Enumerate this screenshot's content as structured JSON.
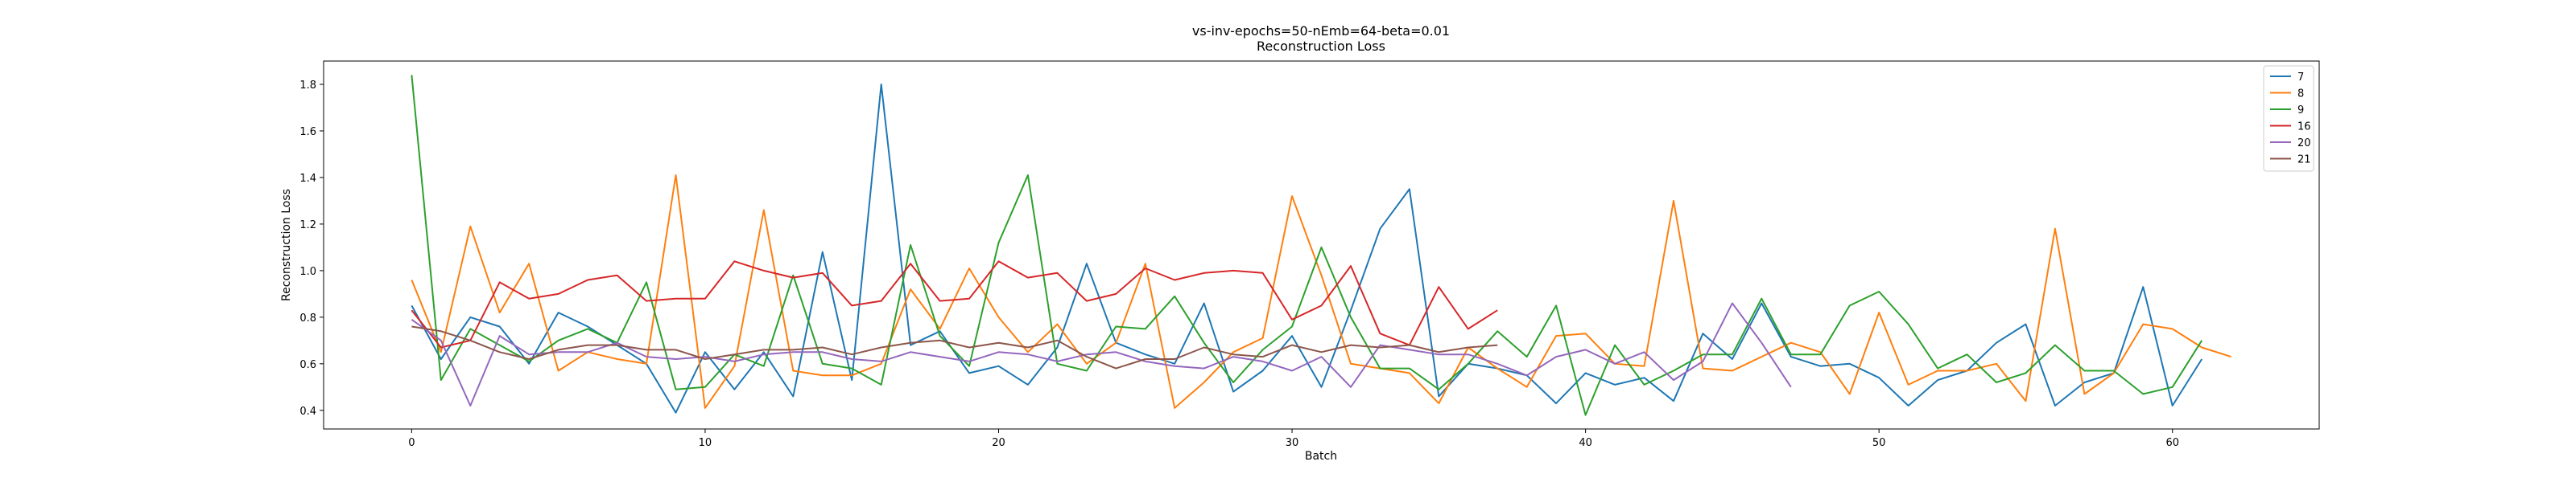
{
  "chart_data": {
    "type": "line",
    "title": "vs-inv-epochs=50-nEmb=64-beta=0.01",
    "subtitle": "Reconstruction Loss",
    "xlabel": "Batch",
    "ylabel": "Reconstruction Loss",
    "xlim": [
      -3,
      65
    ],
    "ylim": [
      0.32,
      1.9
    ],
    "xticks": [
      0,
      10,
      20,
      30,
      40,
      50,
      60
    ],
    "yticks": [
      0.4,
      0.6,
      0.8,
      1.0,
      1.2,
      1.4,
      1.6,
      1.8
    ],
    "grid": false,
    "legend_position": "top-right",
    "series": [
      {
        "name": "7",
        "color": "#1f77b4",
        "values": [
          0.85,
          0.62,
          0.8,
          0.76,
          0.6,
          0.82,
          0.76,
          0.68,
          0.6,
          0.39,
          0.65,
          0.49,
          0.65,
          0.46,
          1.08,
          0.53,
          1.8,
          0.68,
          0.74,
          0.56,
          0.59,
          0.51,
          0.67,
          1.03,
          0.69,
          0.64,
          0.6,
          0.86,
          0.48,
          0.57,
          0.72,
          0.5,
          0.83,
          1.18,
          1.35,
          0.46,
          0.6,
          0.58,
          0.55,
          0.43,
          0.56,
          0.51,
          0.54,
          0.44,
          0.73,
          0.62,
          0.86,
          0.63,
          0.59,
          0.6,
          0.54,
          0.42,
          0.53,
          0.57,
          0.69,
          0.77,
          0.42,
          0.52,
          0.56,
          0.93,
          0.42,
          0.62
        ]
      },
      {
        "name": "8",
        "color": "#ff7f0e",
        "values": [
          0.96,
          0.65,
          1.19,
          0.82,
          1.03,
          0.57,
          0.65,
          0.62,
          0.6,
          1.41,
          0.41,
          0.59,
          1.26,
          0.57,
          0.55,
          0.55,
          0.6,
          0.92,
          0.75,
          1.01,
          0.8,
          0.65,
          0.77,
          0.6,
          0.69,
          1.03,
          0.41,
          0.52,
          0.65,
          0.71,
          1.32,
          0.98,
          0.6,
          0.58,
          0.56,
          0.43,
          0.67,
          0.58,
          0.5,
          0.72,
          0.73,
          0.6,
          0.59,
          1.3,
          0.58,
          0.57,
          0.63,
          0.69,
          0.65,
          0.47,
          0.82,
          0.51,
          0.57,
          0.57,
          0.6,
          0.44,
          1.18,
          0.47,
          0.56,
          0.77,
          0.75,
          0.67,
          0.63
        ]
      },
      {
        "name": "9",
        "color": "#2ca02c",
        "values": [
          1.84,
          0.53,
          0.75,
          0.68,
          0.61,
          0.7,
          0.75,
          0.69,
          0.95,
          0.49,
          0.5,
          0.64,
          0.59,
          0.98,
          0.6,
          0.58,
          0.51,
          1.11,
          0.72,
          0.59,
          1.12,
          1.41,
          0.6,
          0.57,
          0.76,
          0.75,
          0.89,
          0.69,
          0.52,
          0.66,
          0.76,
          1.1,
          0.8,
          0.58,
          0.58,
          0.49,
          0.6,
          0.74,
          0.63,
          0.85,
          0.38,
          0.68,
          0.51,
          0.57,
          0.64,
          0.64,
          0.88,
          0.64,
          0.64,
          0.85,
          0.91,
          0.77,
          0.58,
          0.64,
          0.52,
          0.56,
          0.68,
          0.57,
          0.57,
          0.47,
          0.5,
          0.7
        ]
      },
      {
        "name": "16",
        "color": "#d62728",
        "values": [
          0.83,
          0.67,
          0.7,
          0.95,
          0.88,
          0.9,
          0.96,
          0.98,
          0.87,
          0.88,
          0.88,
          1.04,
          1.0,
          0.97,
          0.99,
          0.85,
          0.87,
          1.03,
          0.87,
          0.88,
          1.04,
          0.97,
          0.99,
          0.87,
          0.9,
          1.01,
          0.96,
          0.99,
          1.0,
          0.99,
          0.79,
          0.85,
          1.02,
          0.73,
          0.68,
          0.93,
          0.75,
          0.83
        ]
      },
      {
        "name": "20",
        "color": "#9467bd",
        "values": [
          0.79,
          0.7,
          0.42,
          0.72,
          0.64,
          0.65,
          0.65,
          0.69,
          0.63,
          0.62,
          0.63,
          0.61,
          0.64,
          0.65,
          0.65,
          0.62,
          0.61,
          0.65,
          0.63,
          0.61,
          0.65,
          0.64,
          0.61,
          0.64,
          0.65,
          0.61,
          0.59,
          0.58,
          0.63,
          0.61,
          0.57,
          0.63,
          0.5,
          0.68,
          0.66,
          0.64,
          0.64,
          0.6,
          0.55,
          0.63,
          0.66,
          0.6,
          0.65,
          0.53,
          0.61,
          0.86,
          0.69,
          0.5
        ]
      },
      {
        "name": "21",
        "color": "#8c564b",
        "values": [
          0.76,
          0.74,
          0.7,
          0.65,
          0.62,
          0.66,
          0.68,
          0.68,
          0.66,
          0.66,
          0.62,
          0.64,
          0.66,
          0.66,
          0.67,
          0.64,
          0.67,
          0.69,
          0.7,
          0.67,
          0.69,
          0.67,
          0.7,
          0.63,
          0.58,
          0.62,
          0.62,
          0.67,
          0.64,
          0.63,
          0.68,
          0.65,
          0.68,
          0.67,
          0.68,
          0.65,
          0.67,
          0.68
        ]
      }
    ]
  }
}
